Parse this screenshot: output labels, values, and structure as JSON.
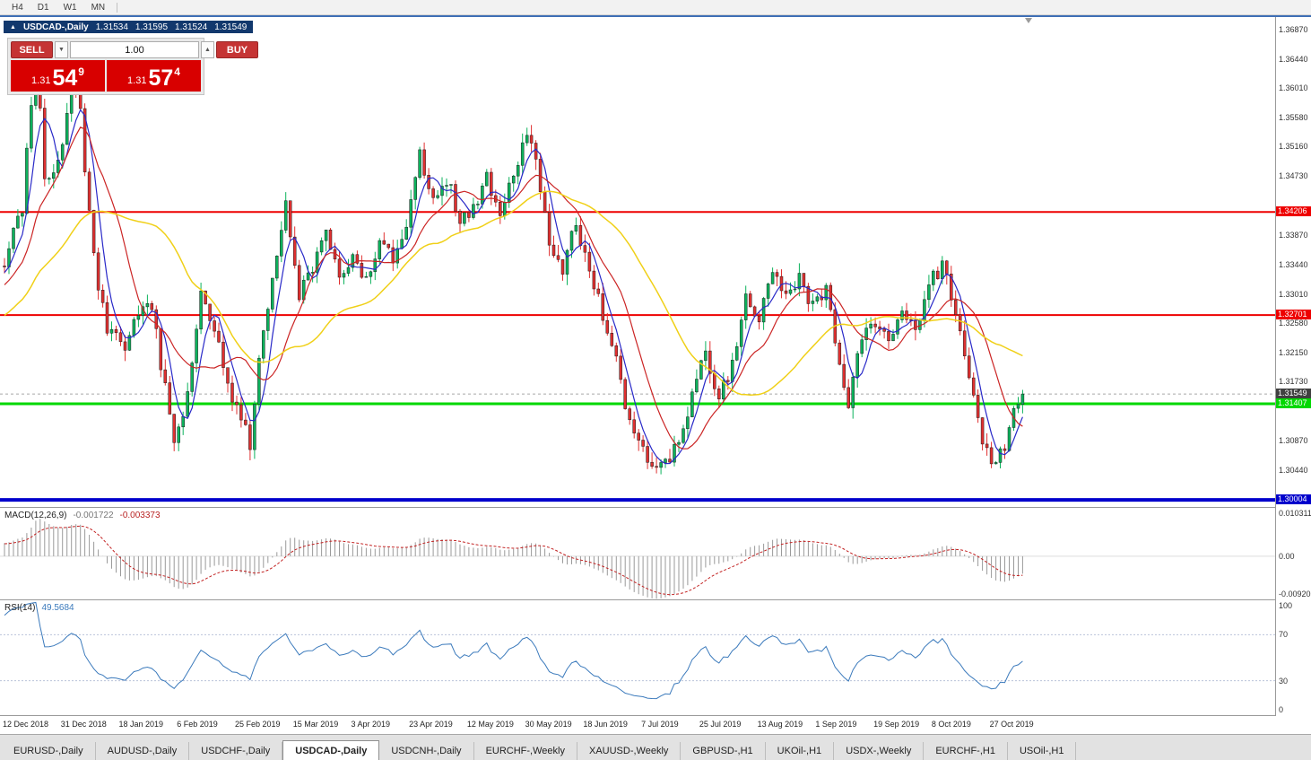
{
  "toolbar": {
    "timeframes": [
      "H4",
      "D1",
      "W1",
      "MN"
    ]
  },
  "chart_header": {
    "symbol": "USDCAD-,Daily",
    "open": "1.31534",
    "high": "1.31595",
    "low": "1.31524",
    "close": "1.31549"
  },
  "trade_panel": {
    "sell_label": "SELL",
    "buy_label": "BUY",
    "volume": "1.00",
    "spin_down": "▼",
    "spin_up": "▲",
    "sell_price": {
      "prefix": "1.31",
      "big": "54",
      "sup": "9"
    },
    "buy_price": {
      "prefix": "1.31",
      "big": "57",
      "sup": "4"
    }
  },
  "colors": {
    "bull": "#0cb25c",
    "bear": "#e03030",
    "candle_outline": "#1c1c1c",
    "macd_hist": "#9a9a9a",
    "macd_signal": "#c22222",
    "rsi": "#3b7abc",
    "current_line": "#a8a8a8",
    "current_label_bg": "#404040",
    "accent_red": "#d80000"
  },
  "chart_data": {
    "type": "candlestick",
    "symbol": "USDCAD",
    "timeframe": "Daily",
    "candle_count": 229,
    "candles_per_label": 13,
    "last_close": 1.31549,
    "price_axis": {
      "max": 1.37076,
      "min": 1.29901,
      "ticks": [
        "1.36870",
        "1.36440",
        "1.36010",
        "1.35580",
        "1.35160",
        "1.34730",
        "1.33870",
        "1.33440",
        "1.33010",
        "1.32580",
        "1.32150",
        "1.31730",
        "1.30870",
        "1.30440"
      ]
    },
    "h_lines": [
      {
        "value": 1.34206,
        "label": "1.34206",
        "color": "#ee0000",
        "width": 2
      },
      {
        "value": 1.32701,
        "label": "1.32701",
        "color": "#ee0000",
        "width": 2
      },
      {
        "value": 1.31407,
        "label": "1.31407",
        "color": "#00d800",
        "width": 3
      },
      {
        "value": 1.30004,
        "label": "1.30004",
        "color": "#0000cc",
        "width": 4
      }
    ],
    "current_price": {
      "value": 1.31549,
      "label": "1.31549"
    },
    "x_labels": [
      "12 Dec 2018",
      "31 Dec 2018",
      "18 Jan 2019",
      "6 Feb 2019",
      "25 Feb 2019",
      "15 Mar 2019",
      "3 Apr 2019",
      "23 Apr 2019",
      "12 May 2019",
      "30 May 2019",
      "18 Jun 2019",
      "7 Jul 2019",
      "25 Jul 2019",
      "13 Aug 2019",
      "1 Sep 2019",
      "19 Sep 2019",
      "8 Oct 2019",
      "27 Oct 2019"
    ],
    "waypoints": [
      [
        0,
        1.335
      ],
      [
        4,
        1.343
      ],
      [
        7,
        1.366
      ],
      [
        9,
        1.347
      ],
      [
        12,
        1.349
      ],
      [
        15,
        1.36
      ],
      [
        17,
        1.356
      ],
      [
        20,
        1.335
      ],
      [
        23,
        1.325
      ],
      [
        27,
        1.323
      ],
      [
        30,
        1.327
      ],
      [
        33,
        1.328
      ],
      [
        36,
        1.316
      ],
      [
        38,
        1.3095
      ],
      [
        41,
        1.315
      ],
      [
        44,
        1.33
      ],
      [
        47,
        1.325
      ],
      [
        50,
        1.317
      ],
      [
        53,
        1.312
      ],
      [
        55,
        1.308
      ],
      [
        57,
        1.32
      ],
      [
        60,
        1.333
      ],
      [
        63,
        1.344
      ],
      [
        66,
        1.33
      ],
      [
        69,
        1.334
      ],
      [
        72,
        1.339
      ],
      [
        75,
        1.333
      ],
      [
        78,
        1.335
      ],
      [
        81,
        1.332
      ],
      [
        84,
        1.338
      ],
      [
        87,
        1.335
      ],
      [
        90,
        1.341
      ],
      [
        93,
        1.35
      ],
      [
        96,
        1.344
      ],
      [
        99,
        1.347
      ],
      [
        102,
        1.341
      ],
      [
        105,
        1.343
      ],
      [
        108,
        1.347
      ],
      [
        111,
        1.342
      ],
      [
        114,
        1.348
      ],
      [
        117,
        1.354
      ],
      [
        119,
        1.35
      ],
      [
        122,
        1.338
      ],
      [
        125,
        1.333
      ],
      [
        128,
        1.341
      ],
      [
        131,
        1.333
      ],
      [
        134,
        1.327
      ],
      [
        137,
        1.32
      ],
      [
        140,
        1.311
      ],
      [
        143,
        1.308
      ],
      [
        146,
        1.304
      ],
      [
        149,
        1.306
      ],
      [
        152,
        1.311
      ],
      [
        155,
        1.318
      ],
      [
        157,
        1.322
      ],
      [
        160,
        1.315
      ],
      [
        163,
        1.32
      ],
      [
        166,
        1.329
      ],
      [
        169,
        1.326
      ],
      [
        172,
        1.333
      ],
      [
        175,
        1.329
      ],
      [
        178,
        1.332
      ],
      [
        181,
        1.328
      ],
      [
        184,
        1.331
      ],
      [
        187,
        1.32
      ],
      [
        189,
        1.314
      ],
      [
        192,
        1.324
      ],
      [
        195,
        1.326
      ],
      [
        198,
        1.323
      ],
      [
        201,
        1.328
      ],
      [
        204,
        1.325
      ],
      [
        207,
        1.332
      ],
      [
        210,
        1.334
      ],
      [
        213,
        1.328
      ],
      [
        216,
        1.318
      ],
      [
        219,
        1.309
      ],
      [
        222,
        1.305
      ],
      [
        224,
        1.308
      ],
      [
        226,
        1.313
      ],
      [
        228,
        1.31549
      ]
    ],
    "moving_averages": [
      {
        "period": 5,
        "type": "sma",
        "color": "#2929c8",
        "width": 1.2
      },
      {
        "period": 13,
        "type": "sma",
        "color": "#cb2424",
        "width": 1.2
      },
      {
        "period": 34,
        "type": "sma",
        "color": "#f0d018",
        "width": 1.5
      }
    ],
    "macd": {
      "label": "MACD(12,26,9)",
      "value": "-0.001722",
      "signal_value": "-0.003373",
      "scale_max": 0.010311,
      "scale_min": -0.009203,
      "axis_labels": [
        "0.010311",
        "0.00",
        "-0.009203"
      ]
    },
    "rsi": {
      "label": "RSI(14)",
      "value": "49.5684",
      "levels": [
        70,
        30
      ],
      "axis_labels": [
        "100",
        "70",
        "30",
        "0"
      ]
    }
  },
  "bottom_tabs": {
    "active": "USDCAD-,Daily",
    "tabs": [
      "EURUSD-,Daily",
      "AUDUSD-,Daily",
      "USDCHF-,Daily",
      "USDCAD-,Daily",
      "USDCNH-,Daily",
      "EURCHF-,Weekly",
      "XAUUSD-,Weekly",
      "GBPUSD-,H1",
      "UKOil-,H1",
      "USDX-,Weekly",
      "EURCHF-,H1",
      "USOil-,H1"
    ]
  }
}
